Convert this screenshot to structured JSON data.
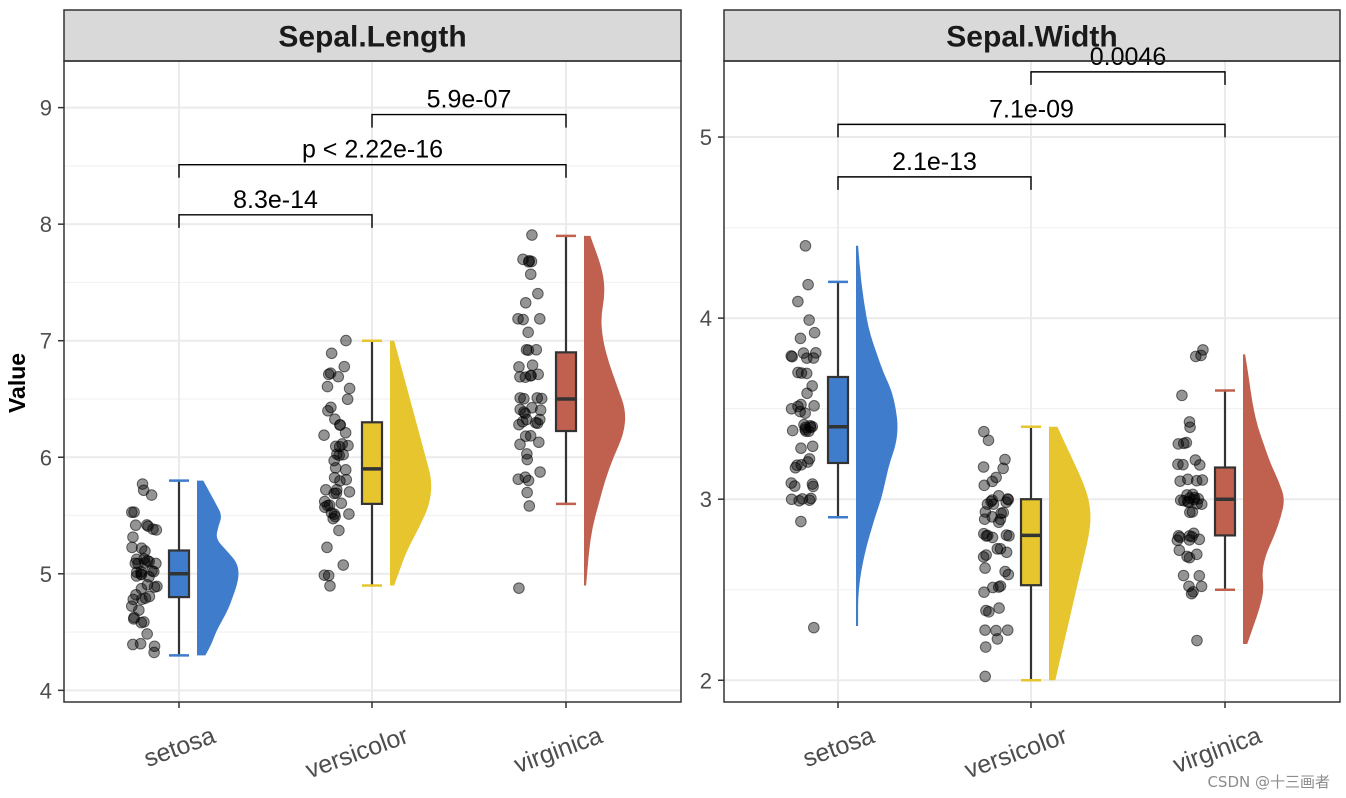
{
  "chart_data": [
    {
      "type": "raincloud",
      "title": "Sepal.Length",
      "ylabel": "Value",
      "ylim": [
        3.9,
        9.4
      ],
      "yticks": [
        4,
        5,
        6,
        7,
        8,
        9
      ],
      "categories": [
        "setosa",
        "versicolor",
        "virginica"
      ],
      "colors": [
        "#3f7ccc",
        "#e6c52f",
        "#c0604e"
      ],
      "boxes": [
        {
          "min": 4.3,
          "q1": 4.8,
          "median": 5.0,
          "q3": 5.2,
          "max": 5.8
        },
        {
          "min": 4.9,
          "q1": 5.6,
          "median": 5.9,
          "q3": 6.3,
          "max": 7.0
        },
        {
          "min": 5.6,
          "q1": 6.225,
          "median": 6.5,
          "q3": 6.9,
          "max": 7.9
        }
      ],
      "density": [
        {
          "y": [
            4.3,
            4.4,
            4.5,
            4.6,
            4.7,
            4.8,
            4.9,
            5.0,
            5.1,
            5.2,
            5.3,
            5.4,
            5.5,
            5.6,
            5.7,
            5.8
          ],
          "w": [
            0.2,
            0.35,
            0.45,
            0.6,
            0.75,
            0.85,
            0.95,
            1.0,
            0.95,
            0.7,
            0.45,
            0.5,
            0.6,
            0.45,
            0.3,
            0.15
          ]
        },
        {
          "y": [
            4.9,
            5.0,
            5.2,
            5.4,
            5.6,
            5.8,
            6.0,
            6.2,
            6.4,
            6.6,
            6.8,
            7.0
          ],
          "w": [
            0.1,
            0.2,
            0.4,
            0.7,
            0.95,
            1.0,
            0.85,
            0.7,
            0.55,
            0.4,
            0.25,
            0.1
          ]
        },
        {
          "y": [
            4.9,
            5.2,
            5.4,
            5.6,
            5.8,
            6.0,
            6.2,
            6.4,
            6.6,
            6.8,
            7.0,
            7.2,
            7.4,
            7.6,
            7.9
          ],
          "w": [
            0.05,
            0.12,
            0.2,
            0.35,
            0.5,
            0.7,
            0.95,
            1.0,
            0.8,
            0.6,
            0.45,
            0.4,
            0.5,
            0.45,
            0.15
          ]
        }
      ],
      "points": [
        [
          4.3,
          4.4,
          4.4,
          4.4,
          4.5,
          4.6,
          4.6,
          4.6,
          4.6,
          4.7,
          4.7,
          4.8,
          4.8,
          4.8,
          4.8,
          4.8,
          4.9,
          4.9,
          4.9,
          4.9,
          5.0,
          5.0,
          5.0,
          5.0,
          5.0,
          5.0,
          5.0,
          5.0,
          5.1,
          5.1,
          5.1,
          5.1,
          5.1,
          5.1,
          5.1,
          5.1,
          5.2,
          5.2,
          5.2,
          5.3,
          5.4,
          5.4,
          5.4,
          5.4,
          5.4,
          5.5,
          5.5,
          5.7,
          5.7,
          5.8
        ],
        [
          4.9,
          5.0,
          5.0,
          5.1,
          5.2,
          5.4,
          5.5,
          5.5,
          5.5,
          5.5,
          5.5,
          5.6,
          5.6,
          5.6,
          5.6,
          5.6,
          5.7,
          5.7,
          5.7,
          5.7,
          5.7,
          5.8,
          5.8,
          5.8,
          5.9,
          5.9,
          6.0,
          6.0,
          6.0,
          6.0,
          6.1,
          6.1,
          6.1,
          6.1,
          6.2,
          6.2,
          6.3,
          6.3,
          6.3,
          6.4,
          6.4,
          6.5,
          6.6,
          6.6,
          6.7,
          6.7,
          6.7,
          6.8,
          6.9,
          7.0
        ],
        [
          4.9,
          5.6,
          5.7,
          5.8,
          5.8,
          5.8,
          5.9,
          6.0,
          6.0,
          6.1,
          6.1,
          6.2,
          6.2,
          6.3,
          6.3,
          6.3,
          6.3,
          6.3,
          6.3,
          6.4,
          6.4,
          6.4,
          6.4,
          6.4,
          6.5,
          6.5,
          6.5,
          6.5,
          6.7,
          6.7,
          6.7,
          6.7,
          6.7,
          6.8,
          6.8,
          6.9,
          6.9,
          6.9,
          7.1,
          7.2,
          7.2,
          7.2,
          7.3,
          7.4,
          7.6,
          7.7,
          7.7,
          7.7,
          7.7,
          7.9
        ]
      ],
      "comparisons": [
        {
          "from": 0,
          "to": 1,
          "label": "8.3e-14",
          "y": 8.08
        },
        {
          "from": 0,
          "to": 2,
          "label": "p < 2.22e-16",
          "y": 8.51
        },
        {
          "from": 1,
          "to": 2,
          "label": "5.9e-07",
          "y": 8.94
        }
      ]
    },
    {
      "type": "raincloud",
      "title": "Sepal.Width",
      "ylabel": "",
      "ylim": [
        1.88,
        5.42
      ],
      "yticks": [
        2,
        3,
        4,
        5
      ],
      "categories": [
        "setosa",
        "versicolor",
        "virginica"
      ],
      "colors": [
        "#3f7ccc",
        "#e6c52f",
        "#c0604e"
      ],
      "boxes": [
        {
          "min": 2.9,
          "q1": 3.2,
          "median": 3.4,
          "q3": 3.675,
          "max": 4.2
        },
        {
          "min": 2.0,
          "q1": 2.525,
          "median": 2.8,
          "q3": 3.0,
          "max": 3.4
        },
        {
          "min": 2.5,
          "q1": 2.8,
          "median": 3.0,
          "q3": 3.175,
          "max": 3.6
        }
      ],
      "density": [
        {
          "y": [
            2.3,
            2.5,
            2.7,
            2.9,
            3.0,
            3.1,
            3.2,
            3.3,
            3.4,
            3.5,
            3.6,
            3.7,
            3.8,
            3.9,
            4.0,
            4.2,
            4.4
          ],
          "w": [
            0.05,
            0.05,
            0.2,
            0.45,
            0.6,
            0.7,
            0.8,
            0.95,
            1.0,
            0.95,
            0.85,
            0.65,
            0.5,
            0.35,
            0.25,
            0.12,
            0.05
          ]
        },
        {
          "y": [
            2.0,
            2.1,
            2.2,
            2.3,
            2.4,
            2.5,
            2.6,
            2.7,
            2.8,
            2.9,
            3.0,
            3.1,
            3.2,
            3.3,
            3.4
          ],
          "w": [
            0.15,
            0.25,
            0.35,
            0.45,
            0.55,
            0.65,
            0.75,
            0.85,
            0.95,
            1.0,
            0.95,
            0.8,
            0.6,
            0.4,
            0.2
          ]
        },
        {
          "y": [
            2.2,
            2.3,
            2.4,
            2.5,
            2.6,
            2.7,
            2.8,
            2.9,
            3.0,
            3.1,
            3.2,
            3.3,
            3.4,
            3.5,
            3.6,
            3.7,
            3.8
          ],
          "w": [
            0.1,
            0.25,
            0.4,
            0.5,
            0.45,
            0.55,
            0.75,
            0.9,
            1.0,
            0.85,
            0.65,
            0.5,
            0.35,
            0.25,
            0.18,
            0.12,
            0.05
          ]
        }
      ],
      "points": [
        [
          2.3,
          2.9,
          3.0,
          3.0,
          3.0,
          3.0,
          3.0,
          3.1,
          3.1,
          3.1,
          3.1,
          3.2,
          3.2,
          3.2,
          3.2,
          3.2,
          3.3,
          3.3,
          3.4,
          3.4,
          3.4,
          3.4,
          3.4,
          3.4,
          3.4,
          3.4,
          3.4,
          3.5,
          3.5,
          3.5,
          3.5,
          3.5,
          3.5,
          3.6,
          3.6,
          3.7,
          3.7,
          3.7,
          3.8,
          3.8,
          3.8,
          3.8,
          3.8,
          3.8,
          3.9,
          3.9,
          4.0,
          4.1,
          4.2,
          4.4
        ],
        [
          2.0,
          2.2,
          2.2,
          2.3,
          2.3,
          2.3,
          2.4,
          2.4,
          2.4,
          2.5,
          2.5,
          2.5,
          2.5,
          2.6,
          2.6,
          2.6,
          2.7,
          2.7,
          2.7,
          2.7,
          2.7,
          2.8,
          2.8,
          2.8,
          2.8,
          2.8,
          2.8,
          2.9,
          2.9,
          2.9,
          2.9,
          2.9,
          2.9,
          2.9,
          3.0,
          3.0,
          3.0,
          3.0,
          3.0,
          3.0,
          3.0,
          3.0,
          3.1,
          3.1,
          3.1,
          3.2,
          3.2,
          3.2,
          3.3,
          3.4
        ],
        [
          2.2,
          2.5,
          2.5,
          2.5,
          2.5,
          2.6,
          2.6,
          2.7,
          2.7,
          2.7,
          2.7,
          2.8,
          2.8,
          2.8,
          2.8,
          2.8,
          2.8,
          2.8,
          2.8,
          2.9,
          2.9,
          3.0,
          3.0,
          3.0,
          3.0,
          3.0,
          3.0,
          3.0,
          3.0,
          3.0,
          3.0,
          3.0,
          3.0,
          3.1,
          3.1,
          3.1,
          3.1,
          3.2,
          3.2,
          3.2,
          3.2,
          3.3,
          3.3,
          3.3,
          3.4,
          3.4,
          3.6,
          3.8,
          3.8,
          3.8
        ]
      ],
      "comparisons": [
        {
          "from": 0,
          "to": 1,
          "label": "2.1e-13",
          "y": 4.78
        },
        {
          "from": 0,
          "to": 2,
          "label": "7.1e-09",
          "y": 5.07
        },
        {
          "from": 1,
          "to": 2,
          "label": "0.0046",
          "y": 5.36
        }
      ]
    }
  ],
  "watermark": "CSDN @十三画者"
}
